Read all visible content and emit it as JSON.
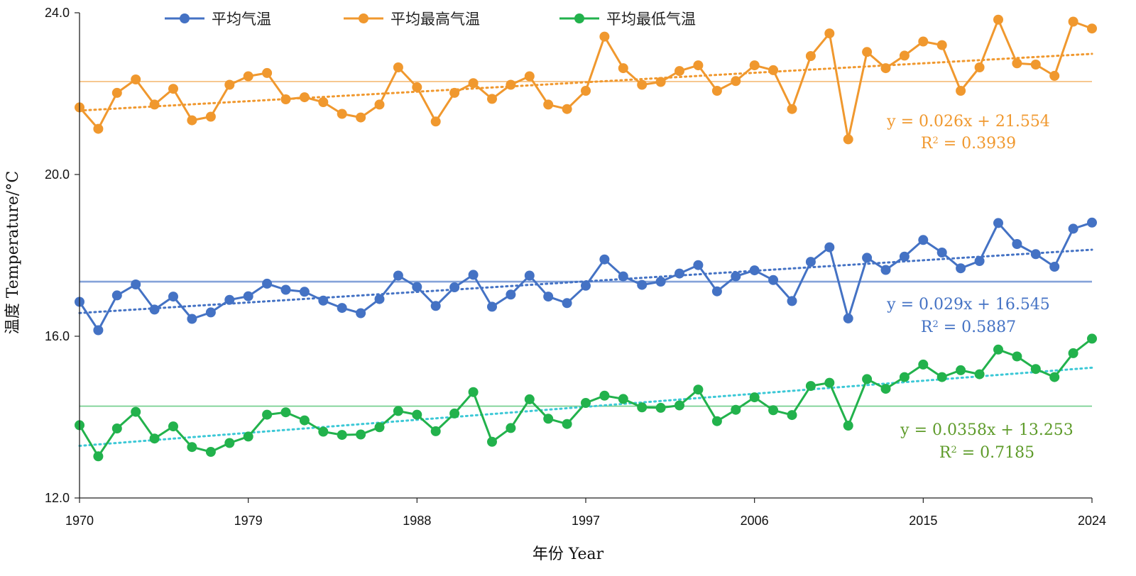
{
  "chart_data": {
    "type": "line",
    "xlabel": "年份 Year",
    "ylabel": "温度 Temperature/°C",
    "xlim": [
      1970,
      2024
    ],
    "ylim": [
      12.0,
      24.0
    ],
    "x_ticks": [
      "1970",
      "1979",
      "1988",
      "1997",
      "2006",
      "2015",
      "2024"
    ],
    "y_ticks": [
      "12.0",
      "16.0",
      "20.0",
      "24.0"
    ],
    "legend_position": "top",
    "grid": false,
    "x": [
      1970,
      1971,
      1972,
      1973,
      1974,
      1975,
      1976,
      1977,
      1978,
      1979,
      1980,
      1981,
      1982,
      1983,
      1984,
      1985,
      1986,
      1987,
      1988,
      1989,
      1990,
      1991,
      1992,
      1993,
      1994,
      1995,
      1996,
      1997,
      1998,
      1999,
      2000,
      2001,
      2002,
      2003,
      2004,
      2005,
      2006,
      2007,
      2008,
      2009,
      2010,
      2011,
      2012,
      2013,
      2014,
      2015,
      2016,
      2017,
      2018,
      2019,
      2020,
      2021,
      2022,
      2023,
      2024
    ],
    "series": [
      {
        "name": "平均最高气温",
        "color": "#F0982E",
        "mean": 22.3,
        "trend": {
          "slope": 0.026,
          "intercept": 21.554
        },
        "equation": "y = 0.026x + 21.554",
        "r2_label": "R",
        "r2_sup": "2",
        "r2_value": " = 0.3939",
        "values": [
          21.66,
          21.13,
          22.02,
          22.35,
          21.73,
          22.12,
          21.34,
          21.43,
          22.22,
          22.43,
          22.51,
          21.86,
          21.91,
          21.79,
          21.5,
          21.41,
          21.73,
          22.65,
          22.16,
          21.31,
          22.02,
          22.26,
          21.87,
          22.22,
          22.43,
          21.73,
          21.62,
          22.07,
          23.41,
          22.63,
          22.22,
          22.29,
          22.56,
          22.7,
          22.07,
          22.31,
          22.7,
          22.58,
          21.62,
          22.93,
          23.49,
          20.87,
          23.03,
          22.63,
          22.94,
          23.29,
          23.2,
          22.07,
          22.65,
          23.83,
          22.75,
          22.72,
          22.44,
          23.78,
          23.61
        ]
      },
      {
        "name": "平均气温",
        "color": "#4472C4",
        "mean": 17.35,
        "trend": {
          "slope": 0.029,
          "intercept": 16.545
        },
        "equation": "y = 0.029x + 16.545",
        "r2_label": "R",
        "r2_sup": "2",
        "r2_value": " = 0.5887",
        "values": [
          16.85,
          16.15,
          17.01,
          17.28,
          16.66,
          16.98,
          16.43,
          16.59,
          16.9,
          16.99,
          17.3,
          17.15,
          17.1,
          16.88,
          16.7,
          16.57,
          16.92,
          17.5,
          17.22,
          16.75,
          17.21,
          17.52,
          16.73,
          17.03,
          17.5,
          16.98,
          16.82,
          17.25,
          17.9,
          17.48,
          17.27,
          17.35,
          17.55,
          17.76,
          17.11,
          17.48,
          17.63,
          17.39,
          16.87,
          17.84,
          18.2,
          16.44,
          17.94,
          17.64,
          17.97,
          18.38,
          18.07,
          17.68,
          17.86,
          18.8,
          18.28,
          18.03,
          17.72,
          18.66,
          18.81
        ]
      },
      {
        "name": "平均最低气温",
        "color": "#22B24C",
        "mean": 14.27,
        "trend": {
          "slope": 0.0358,
          "intercept": 13.253
        },
        "trend_color": "#3CC8D6",
        "label_color": "#5E9B2A",
        "equation": "y = 0.0358x + 13.253",
        "r2_label": "R",
        "r2_sup": "2",
        "r2_value": " = 0.7185",
        "values": [
          13.8,
          13.03,
          13.72,
          14.13,
          13.47,
          13.77,
          13.26,
          13.14,
          13.36,
          13.52,
          14.06,
          14.12,
          13.92,
          13.64,
          13.56,
          13.57,
          13.75,
          14.15,
          14.06,
          13.65,
          14.09,
          14.62,
          13.39,
          13.73,
          14.44,
          13.96,
          13.83,
          14.35,
          14.53,
          14.45,
          14.24,
          14.23,
          14.29,
          14.68,
          13.9,
          14.18,
          14.49,
          14.17,
          14.05,
          14.77,
          14.85,
          13.79,
          14.94,
          14.7,
          14.99,
          15.3,
          14.99,
          15.16,
          15.06,
          15.67,
          15.5,
          15.19,
          14.99,
          15.58,
          15.94
        ]
      }
    ]
  },
  "legend": {
    "items": [
      "平均气温",
      "平均最高气温",
      "平均最低气温"
    ]
  }
}
